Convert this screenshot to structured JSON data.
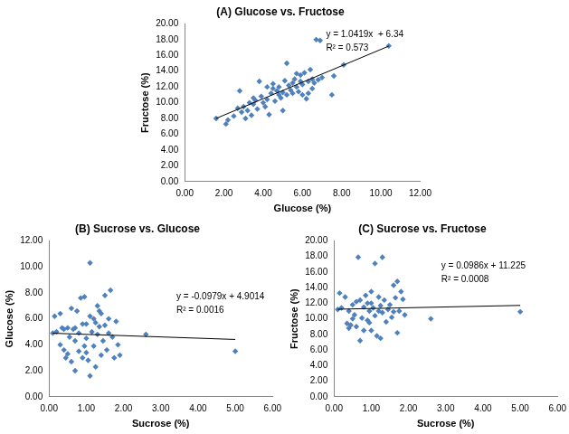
{
  "chart_data": [
    {
      "type": "scatter",
      "title": "(A) Glucose vs. Fructose",
      "x_label": "Glucose (%)",
      "y_label": "Fructose (%)",
      "color": "#4F81BD",
      "marker": "diamond",
      "grid": false,
      "x": [
        1.6,
        2.1,
        2.2,
        2.5,
        2.7,
        2.8,
        2.9,
        3.0,
        3.1,
        3.2,
        3.3,
        3.4,
        3.5,
        3.6,
        3.7,
        3.8,
        3.9,
        4.0,
        4.1,
        4.2,
        4.3,
        4.4,
        4.5,
        4.5,
        4.6,
        4.7,
        4.8,
        4.9,
        5.0,
        5.0,
        5.1,
        5.2,
        5.2,
        5.3,
        5.4,
        5.5,
        5.5,
        5.6,
        5.7,
        5.8,
        5.9,
        6.0,
        6.0,
        6.1,
        6.2,
        6.3,
        6.4,
        6.5,
        6.5,
        6.6,
        6.7,
        6.9,
        7.0,
        7.5,
        7.6,
        8.1,
        10.4,
        4.2,
        3.5,
        5.7,
        6.3,
        4.8,
        5.9,
        6.8
      ],
      "values": [
        8.0,
        7.3,
        7.8,
        8.3,
        9.3,
        11.5,
        8.8,
        9.5,
        8.0,
        9.0,
        10.0,
        8.4,
        9.8,
        10.3,
        9.2,
        12.7,
        10.8,
        10.0,
        9.5,
        10.4,
        8.5,
        11.2,
        11.8,
        12.4,
        10.2,
        11.5,
        12.0,
        10.6,
        9.0,
        11.3,
        12.8,
        15.0,
        11.0,
        12.2,
        11.6,
        12.5,
        11.2,
        13.0,
        12.0,
        11.4,
        13.5,
        12.3,
        11.0,
        13.8,
        10.5,
        12.7,
        14.2,
        11.8,
        13.0,
        12.5,
        18.0,
        17.9,
        13.2,
        11.0,
        13.4,
        14.8,
        17.2,
        12.0,
        10.6,
        13.7,
        11.2,
        11.0,
        12.7,
        12.9
      ],
      "trendline": {
        "x": [
          1.6,
          10.4
        ],
        "values": [
          8.01,
          17.18
        ]
      },
      "annotations": [
        "y = 1.0419x  + 6.34",
        "R² = 0.573"
      ],
      "xlim": [
        0,
        12
      ],
      "xticks": [
        {
          "value": 0,
          "label": "0.00"
        },
        {
          "value": 2,
          "label": "2.00"
        },
        {
          "value": 4,
          "label": "4.00"
        },
        {
          "value": 6,
          "label": "6.00"
        },
        {
          "value": 8,
          "label": "8.00"
        },
        {
          "value": 10,
          "label": "10.00"
        },
        {
          "value": 12,
          "label": "12.00"
        }
      ],
      "ylim": [
        0,
        20
      ],
      "yticks": [
        {
          "value": 0,
          "label": "0.00"
        },
        {
          "value": 2,
          "label": "2.00"
        },
        {
          "value": 4,
          "label": "4.00"
        },
        {
          "value": 6,
          "label": "6.00"
        },
        {
          "value": 8,
          "label": "8.00"
        },
        {
          "value": 10,
          "label": "10.00"
        },
        {
          "value": 12,
          "label": "12.00"
        },
        {
          "value": 14,
          "label": "14.00"
        },
        {
          "value": 16,
          "label": "16.00"
        },
        {
          "value": 18,
          "label": "18.00"
        },
        {
          "value": 20,
          "label": "20.00"
        }
      ]
    },
    {
      "type": "scatter",
      "title": "(B) Sucrose vs. Glucose",
      "x_label": "Sucrose (%)",
      "y_label": "Glucose (%)",
      "color": "#4F81BD",
      "marker": "diamond",
      "grid": false,
      "x": [
        0.1,
        0.15,
        0.3,
        0.3,
        0.35,
        0.4,
        0.45,
        0.5,
        0.5,
        0.55,
        0.6,
        0.6,
        0.65,
        0.7,
        0.7,
        0.75,
        0.8,
        0.8,
        0.85,
        0.9,
        0.9,
        0.95,
        1.0,
        1.0,
        1.05,
        1.1,
        1.1,
        1.1,
        1.15,
        1.2,
        1.2,
        1.25,
        1.3,
        1.3,
        1.35,
        1.4,
        1.4,
        1.45,
        1.5,
        1.5,
        1.55,
        1.6,
        1.65,
        1.7,
        1.75,
        1.8,
        1.85,
        1.9,
        2.6,
        5.0,
        0.2,
        0.95,
        1.25,
        1.6,
        0.4,
        1.0,
        0.7,
        1.35
      ],
      "values": [
        4.9,
        6.2,
        4.0,
        6.4,
        5.3,
        3.6,
        3.0,
        3.3,
        5.3,
        4.6,
        6.8,
        2.7,
        5.2,
        4.3,
        2.0,
        6.6,
        3.5,
        4.9,
        7.6,
        3.0,
        5.6,
        7.7,
        4.5,
        5.6,
        2.8,
        10.3,
        1.6,
        6.2,
        5.0,
        3.9,
        6.0,
        2.3,
        4.8,
        7.0,
        5.4,
        3.2,
        6.4,
        4.3,
        7.8,
        5.5,
        3.6,
        6.0,
        8.2,
        4.6,
        3.0,
        5.8,
        4.0,
        3.2,
        4.8,
        3.5,
        5.0,
        3.9,
        5.7,
        4.9,
        5.2,
        3.4,
        5.3,
        6.6
      ],
      "trendline": {
        "x": [
          0.1,
          5.0
        ],
        "values": [
          4.89,
          4.41
        ]
      },
      "annotations": [
        "y = -0.0979x + 4.9014",
        "R² = 0.0016"
      ],
      "xlim": [
        0,
        6
      ],
      "xticks": [
        {
          "value": 0,
          "label": "0.00"
        },
        {
          "value": 1,
          "label": "1.00"
        },
        {
          "value": 2,
          "label": "2.00"
        },
        {
          "value": 3,
          "label": "3.00"
        },
        {
          "value": 4,
          "label": "4.00"
        },
        {
          "value": 5,
          "label": "5.00"
        },
        {
          "value": 6,
          "label": "6.00"
        }
      ],
      "ylim": [
        0,
        12
      ],
      "yticks": [
        {
          "value": 0,
          "label": "0.00"
        },
        {
          "value": 2,
          "label": "2.00"
        },
        {
          "value": 4,
          "label": "4.00"
        },
        {
          "value": 6,
          "label": "6.00"
        },
        {
          "value": 8,
          "label": "8.00"
        },
        {
          "value": 10,
          "label": "10.00"
        },
        {
          "value": 12,
          "label": "12.00"
        }
      ]
    },
    {
      "type": "scatter",
      "title": "(C) Sucrose vs. Fructose",
      "x_label": "Sucrose (%)",
      "y_label": "Fructose (%)",
      "color": "#4F81BD",
      "marker": "diamond",
      "grid": false,
      "x": [
        0.1,
        0.15,
        0.3,
        0.35,
        0.4,
        0.45,
        0.5,
        0.5,
        0.55,
        0.6,
        0.6,
        0.65,
        0.7,
        0.7,
        0.75,
        0.8,
        0.8,
        0.85,
        0.9,
        0.9,
        0.95,
        1.0,
        1.0,
        1.05,
        1.1,
        1.1,
        1.15,
        1.2,
        1.2,
        1.25,
        1.3,
        1.3,
        1.35,
        1.4,
        1.45,
        1.5,
        1.55,
        1.6,
        1.65,
        1.7,
        1.7,
        1.75,
        1.8,
        1.85,
        1.9,
        2.6,
        5.0,
        0.2,
        0.95,
        1.25,
        1.6,
        0.4,
        1.0
      ],
      "values": [
        11.2,
        13.3,
        12.8,
        9.4,
        8.8,
        9.2,
        11.8,
        10.0,
        10.5,
        9.0,
        12.2,
        17.9,
        7.2,
        12.4,
        10.1,
        8.5,
        11.5,
        13.0,
        9.8,
        12.0,
        11.0,
        8.5,
        13.5,
        11.4,
        10.4,
        17.1,
        7.8,
        12.8,
        11.0,
        7.5,
        17.9,
        10.8,
        12.4,
        9.6,
        11.2,
        11.8,
        10.2,
        14.3,
        12.7,
        14.8,
        8.2,
        11.0,
        13.5,
        12.5,
        10.5,
        10.0,
        10.9,
        11.4,
        9.5,
        11.7,
        10.9,
        11.0,
        12.0
      ],
      "trendline": {
        "x": [
          0.1,
          5.0
        ],
        "values": [
          11.23,
          11.72
        ]
      },
      "annotations": [
        "y = 0.0986x + 11.225",
        "R² = 0.0008"
      ],
      "xlim": [
        0,
        6
      ],
      "xticks": [
        {
          "value": 0,
          "label": "0.00"
        },
        {
          "value": 1,
          "label": "1.00"
        },
        {
          "value": 2,
          "label": "2.00"
        },
        {
          "value": 3,
          "label": "3.00"
        },
        {
          "value": 4,
          "label": "4.00"
        },
        {
          "value": 5,
          "label": "5.00"
        },
        {
          "value": 6,
          "label": "6.00"
        }
      ],
      "ylim": [
        0,
        20
      ],
      "yticks": [
        {
          "value": 0,
          "label": "0.00"
        },
        {
          "value": 2,
          "label": "2.00"
        },
        {
          "value": 4,
          "label": "4.00"
        },
        {
          "value": 6,
          "label": "6.00"
        },
        {
          "value": 8,
          "label": "8.00"
        },
        {
          "value": 10,
          "label": "10.00"
        },
        {
          "value": 12,
          "label": "12.00"
        },
        {
          "value": 14,
          "label": "14.00"
        },
        {
          "value": 16,
          "label": "16.00"
        },
        {
          "value": 18,
          "label": "18.00"
        },
        {
          "value": 20,
          "label": "20.00"
        }
      ]
    }
  ]
}
